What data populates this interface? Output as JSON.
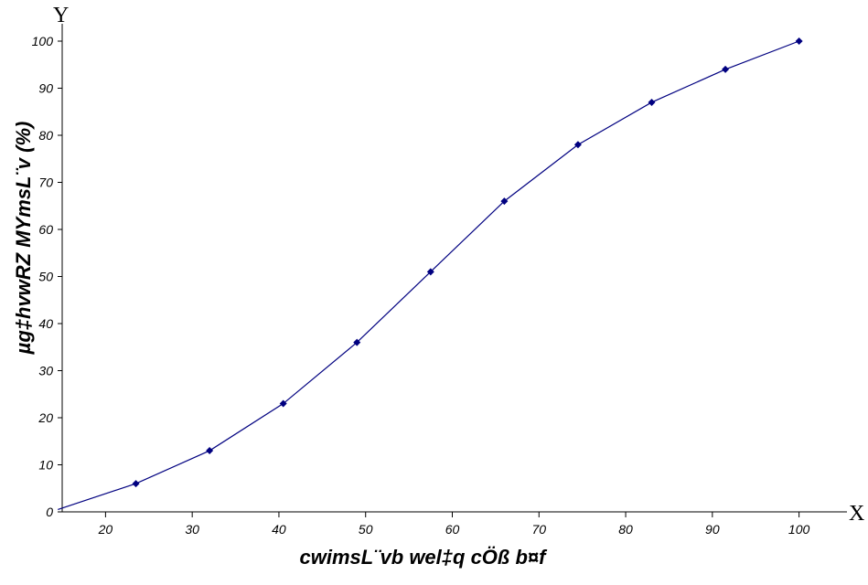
{
  "chart_data": {
    "type": "line",
    "title": "",
    "xlabel": "cwimsL¨vb wel‡q cÖß b¤f",
    "ylabel": "µg‡hvwRZ MYmsL¨v (%)",
    "x_axis_letter": "X",
    "y_axis_letter": "Y",
    "xlim": [
      15,
      105
    ],
    "ylim": [
      0,
      100
    ],
    "x_ticks": [
      20,
      30,
      40,
      50,
      60,
      70,
      80,
      90,
      100
    ],
    "y_ticks": [
      0,
      10,
      20,
      30,
      40,
      50,
      60,
      70,
      80,
      90,
      100
    ],
    "grid": false,
    "series": [
      {
        "color": "#000080",
        "x": [
          14.5,
          23.5,
          32,
          40.5,
          49,
          57.5,
          66,
          74.5,
          83,
          91.5,
          100
        ],
        "y": [
          0.5,
          6,
          13,
          23,
          36,
          51,
          66,
          78,
          87,
          94,
          100
        ]
      }
    ]
  }
}
